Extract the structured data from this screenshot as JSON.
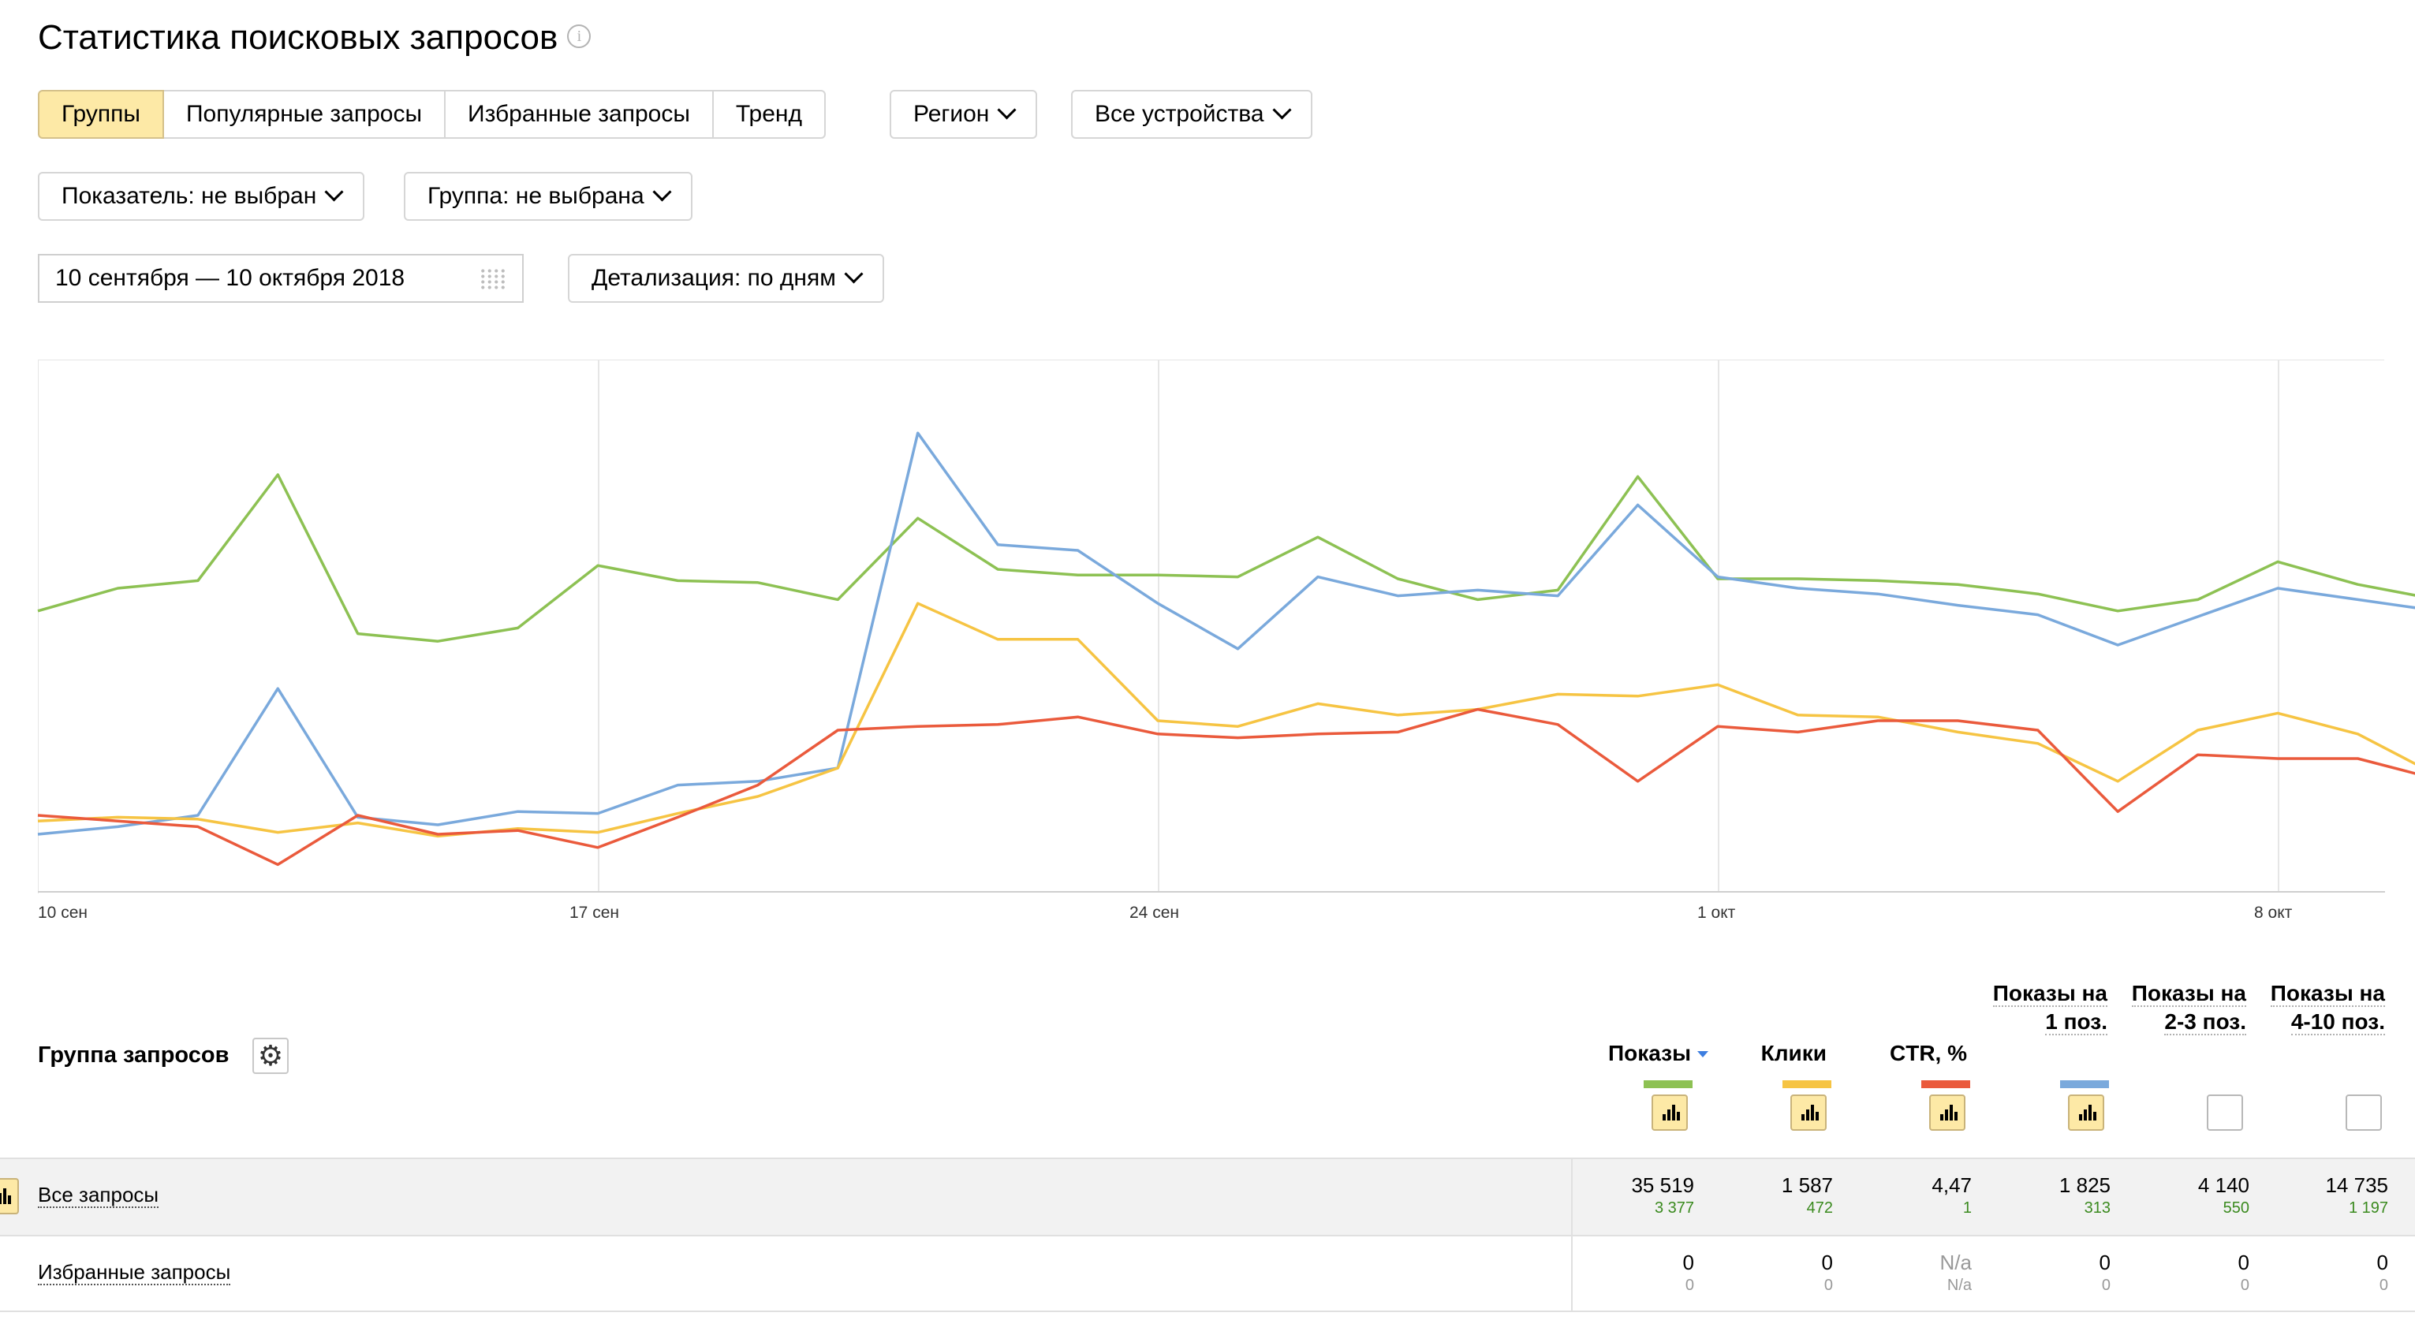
{
  "title": "Статистика поисковых запросов",
  "info_glyph": "i",
  "tabs": [
    {
      "label": "Группы",
      "active": true
    },
    {
      "label": "Популярные запросы",
      "active": false
    },
    {
      "label": "Избранные запросы",
      "active": false
    },
    {
      "label": "Тренд",
      "active": false
    }
  ],
  "filters": {
    "region": "Регион",
    "devices": "Все устройства",
    "indicator": "Показатель: не выбран",
    "group": "Группа: не выбрана",
    "date_range": "10 сентября — 10 октября 2018",
    "detail": "Детализация: по дням"
  },
  "chart_data": {
    "type": "line",
    "x_start": "10 сен",
    "x_tick_labels": [
      "10 сен",
      "17 сен",
      "24 сен",
      "1 окт",
      "8 окт"
    ],
    "x": [
      "10 сен",
      "11 сен",
      "12 сен",
      "13 сен",
      "14 сен",
      "15 сен",
      "16 сен",
      "17 сен",
      "18 сен",
      "19 сен",
      "20 сен",
      "21 сен",
      "22 сен",
      "23 сен",
      "24 сен",
      "25 сен",
      "26 сен",
      "27 сен",
      "28 сен",
      "29 сен",
      "30 сен",
      "1 окт",
      "2 окт",
      "3 окт",
      "4 окт",
      "5 окт",
      "6 окт",
      "7 окт",
      "8 окт",
      "9 окт",
      "10 окт"
    ],
    "grid": true,
    "legend": "none",
    "y_axis_shown": false,
    "series": [
      {
        "color": "#8dc153",
        "values": [
          1480,
          1600,
          1640,
          2200,
          1360,
          1320,
          1390,
          1720,
          1640,
          1630,
          1540,
          1970,
          1700,
          1670,
          1670,
          1660,
          1870,
          1650,
          1540,
          1590,
          2190,
          1650,
          1650,
          1640,
          1620,
          1570,
          1480,
          1540,
          1740,
          1620,
          1540
        ]
      },
      {
        "color": "#f6c443",
        "values": [
          370,
          390,
          380,
          310,
          360,
          290,
          330,
          310,
          410,
          500,
          650,
          1520,
          1330,
          1330,
          900,
          870,
          990,
          930,
          960,
          1040,
          1030,
          1090,
          930,
          920,
          840,
          780,
          580,
          850,
          940,
          830,
          610
        ]
      },
      {
        "color": "#ea5a3c",
        "values": [
          400,
          370,
          340,
          140,
          400,
          300,
          320,
          230,
          390,
          560,
          850,
          870,
          880,
          920,
          830,
          810,
          830,
          840,
          960,
          880,
          580,
          870,
          840,
          900,
          900,
          850,
          420,
          720,
          700,
          700,
          590
        ]
      },
      {
        "color": "#7aa9dc",
        "values": [
          300,
          340,
          400,
          1070,
          390,
          350,
          420,
          410,
          560,
          580,
          650,
          2420,
          1830,
          1800,
          1520,
          1280,
          1660,
          1560,
          1590,
          1560,
          2040,
          1660,
          1600,
          1570,
          1510,
          1460,
          1300,
          1450,
          1600,
          1540,
          1480
        ]
      }
    ]
  },
  "table": {
    "group_header": "Группа запросов",
    "columns": [
      {
        "label": "Показы",
        "sorted": true,
        "color": "#8dc153",
        "checked": true
      },
      {
        "label": "Клики",
        "sorted": false,
        "color": "#f6c443",
        "checked": true
      },
      {
        "label": "CTR, %",
        "sorted": false,
        "color": "#ea5a3c",
        "checked": true
      },
      {
        "label": "Показы на 1 поз.",
        "sorted": false,
        "color": "#7aa9dc",
        "checked": true
      },
      {
        "label": "Показы на 2-3 поз.",
        "sorted": false,
        "color": "",
        "checked": false
      },
      {
        "label": "Показы на 4-10 поз.",
        "sorted": false,
        "color": "",
        "checked": false
      }
    ],
    "rows": [
      {
        "label": "Все запросы",
        "values": [
          "35 519",
          "1 587",
          "4,47",
          "1 825",
          "4 140",
          "14 735"
        ],
        "subs": [
          "3 377",
          "472",
          "1",
          "313",
          "550",
          "1 197"
        ]
      },
      {
        "label": "Избранные запросы",
        "values": [
          "0",
          "0",
          "N/a",
          "0",
          "0",
          "0"
        ],
        "subs": [
          "0",
          "0",
          "N/a",
          "0",
          "0",
          "0"
        ]
      }
    ]
  }
}
